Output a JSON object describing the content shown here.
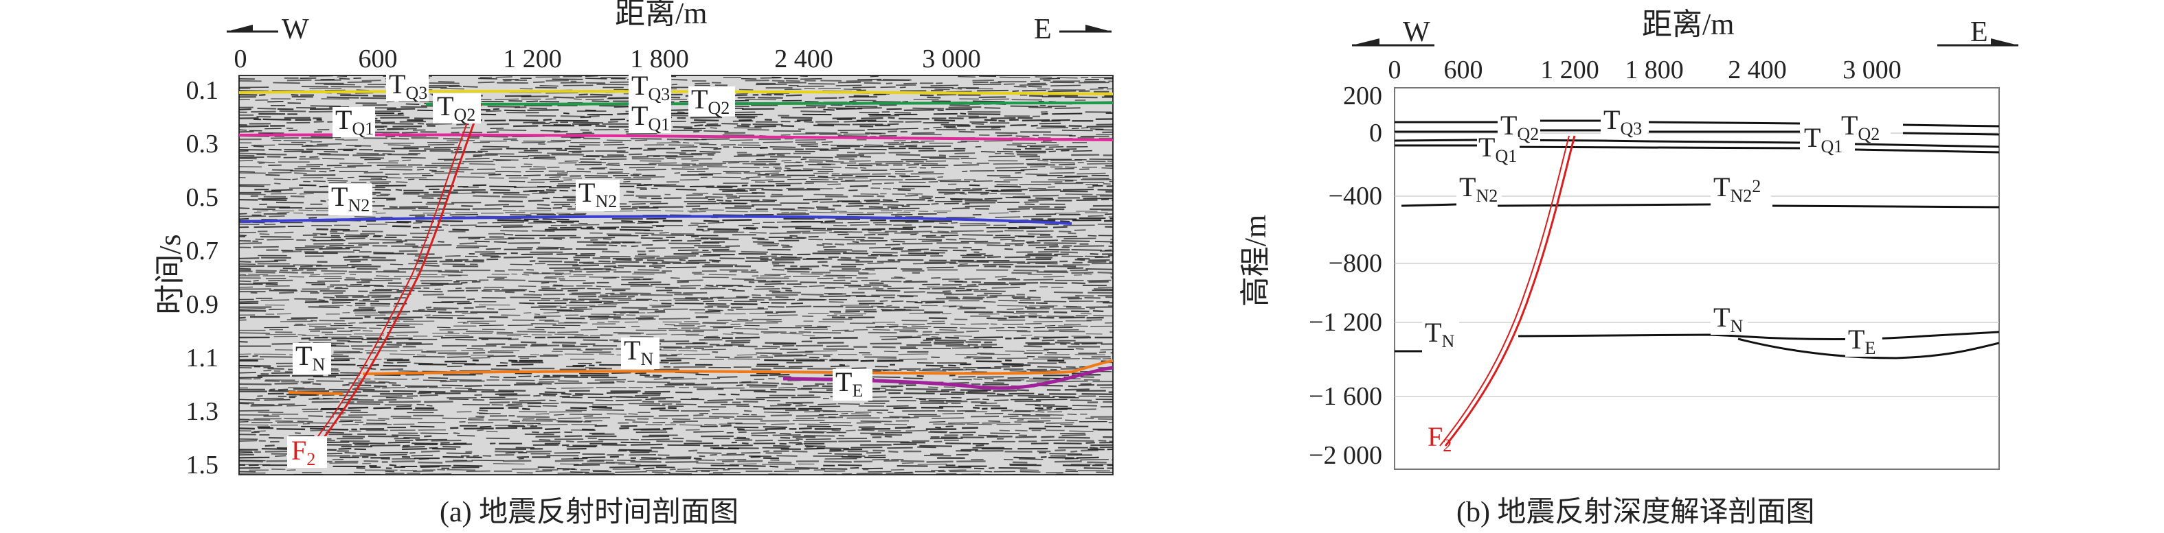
{
  "panel_a": {
    "caption": "(a) 地震反射时间剖面图",
    "x_axis_title": "距离/m",
    "y_axis_title": "时间/s",
    "direction_left": "W",
    "direction_right": "E",
    "x_ticks": [
      "0",
      "600",
      "1 200",
      "1 800",
      "2 400",
      "3 000"
    ],
    "y_ticks": [
      "0.1",
      "0.3",
      "0.5",
      "0.7",
      "0.9",
      "1.1",
      "1.3",
      "1.5"
    ],
    "horizons": [
      {
        "id": "TQ3",
        "main": "T",
        "sub": "Q3",
        "color": "#e8d21a"
      },
      {
        "id": "TQ2",
        "main": "T",
        "sub": "Q2",
        "color": "#1e9a4a"
      },
      {
        "id": "TQ1",
        "main": "T",
        "sub": "Q1",
        "color": "#e0299a"
      },
      {
        "id": "TN2",
        "main": "T",
        "sub": "N2",
        "color": "#3a3fd0"
      },
      {
        "id": "TN",
        "main": "T",
        "sub": "N",
        "color": "#f07a18"
      },
      {
        "id": "TE",
        "main": "T",
        "sub": "E",
        "color": "#a0219a"
      }
    ],
    "fault": {
      "main": "F",
      "sub": "2",
      "color": "#d81e1e"
    }
  },
  "panel_b": {
    "caption": "(b) 地震反射深度解译剖面图",
    "x_axis_title": "距离/m",
    "y_axis_title": "高程/m",
    "direction_left": "W",
    "direction_right": "E",
    "x_ticks": [
      "0",
      "600",
      "1 200",
      "1 800",
      "2 400",
      "3 000"
    ],
    "y_ticks": [
      "200",
      "0",
      "−400",
      "−800",
      "−1 200",
      "−1 600",
      "−2 000"
    ],
    "horizon_labels": [
      {
        "main": "T",
        "sub": "Q2"
      },
      {
        "main": "T",
        "sub": "Q3"
      },
      {
        "main": "T",
        "sub": "Q1"
      },
      {
        "main": "T",
        "sub": "Q1"
      },
      {
        "main": "T",
        "sub": "Q2"
      },
      {
        "main": "T",
        "sub": "N2"
      },
      {
        "main": "T",
        "sub": "N2",
        "suffix": "2"
      },
      {
        "main": "T",
        "sub": "N"
      },
      {
        "main": "T",
        "sub": "N"
      },
      {
        "main": "T",
        "sub": "E"
      }
    ],
    "fault": {
      "main": "F",
      "sub": "2",
      "color": "#d81e1e"
    }
  }
}
